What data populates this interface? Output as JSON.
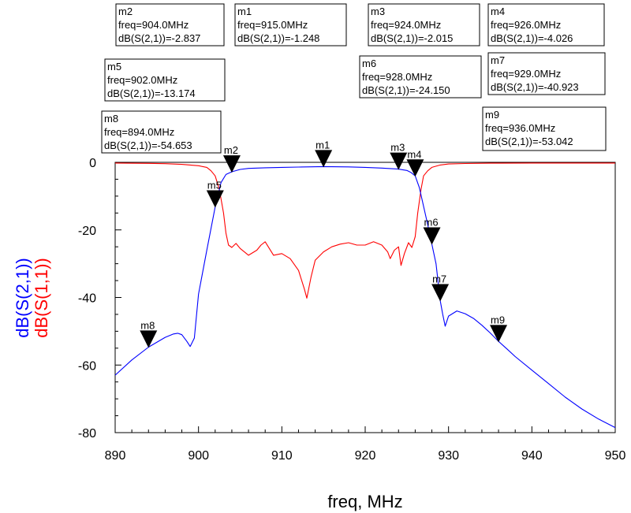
{
  "chart_data": {
    "type": "line",
    "xlabel": "freq, MHz",
    "ylabels": [
      "dB(S(2,1))",
      "dB(S(1,1))"
    ],
    "xlim": [
      890,
      950
    ],
    "ylim": [
      -80,
      0
    ],
    "xticks": [
      890,
      900,
      910,
      920,
      930,
      940,
      950
    ],
    "yticks": [
      0,
      -20,
      -40,
      -60,
      -80
    ],
    "grid": false,
    "series": [
      {
        "name": "dB(S(2,1))",
        "color": "#0000ff",
        "x": [
          890,
          892,
          894,
          896,
          897,
          897.5,
          898,
          898.6,
          899.0,
          899.5,
          900,
          901,
          902,
          902.7,
          903.3,
          904,
          905,
          906,
          908,
          910,
          912,
          915,
          918,
          920,
          922,
          924,
          925,
          925.5,
          926,
          926.5,
          927,
          927.5,
          928,
          928.5,
          929,
          929.3,
          929.6,
          930,
          931,
          932,
          933,
          934,
          935,
          936,
          937,
          938,
          940,
          942,
          944,
          946,
          948,
          950
        ],
        "y": [
          -63,
          -58.5,
          -54.7,
          -51.8,
          -50.8,
          -50.6,
          -51,
          -53,
          -54.5,
          -52,
          -39,
          -26,
          -13.2,
          -6,
          -3.6,
          -2.8,
          -2.1,
          -1.8,
          -1.6,
          -1.5,
          -1.4,
          -1.25,
          -1.35,
          -1.5,
          -1.7,
          -2.0,
          -2.4,
          -3,
          -4.0,
          -7.5,
          -13,
          -18.5,
          -24.2,
          -30,
          -40.9,
          -45,
          -48.5,
          -45.5,
          -44,
          -44.8,
          -46.2,
          -48.2,
          -50.5,
          -53.0,
          -55.2,
          -57.5,
          -61.5,
          -65.5,
          -69.5,
          -73,
          -76,
          -78.5
        ]
      },
      {
        "name": "dB(S(1,1))",
        "color": "#ff0000",
        "x": [
          890,
          894,
          896,
          898,
          899,
          900,
          901,
          901.5,
          902,
          902.5,
          903,
          903.3,
          903.6,
          904,
          904.5,
          905,
          906,
          907,
          907.5,
          908,
          909,
          910,
          911,
          912,
          912.7,
          913,
          913.5,
          914,
          915,
          916,
          917,
          918,
          919,
          920,
          921,
          922,
          922.7,
          923,
          923.5,
          924,
          924.3,
          924.7,
          925.2,
          925.6,
          926,
          926.3,
          926.7,
          927,
          927.5,
          928,
          929,
          930,
          932,
          935,
          940,
          945,
          950
        ],
        "y": [
          -0.2,
          -0.3,
          -0.4,
          -0.6,
          -0.8,
          -1,
          -1.5,
          -2.5,
          -4,
          -8,
          -15,
          -21,
          -24.5,
          -25.2,
          -24,
          -25.5,
          -27.5,
          -26,
          -24.5,
          -23.5,
          -27.5,
          -27,
          -28.5,
          -32,
          -37.5,
          -40.2,
          -34,
          -29,
          -26.5,
          -25,
          -24.2,
          -23.8,
          -24.5,
          -24.5,
          -23.5,
          -24.5,
          -26.5,
          -28.5,
          -26,
          -25,
          -30.5,
          -27,
          -23.8,
          -25.2,
          -22,
          -15,
          -8,
          -4,
          -2.5,
          -1.5,
          -0.8,
          -0.5,
          -0.35,
          -0.25,
          -0.2,
          -0.2,
          -0.2
        ]
      }
    ],
    "markers": [
      {
        "id": "m1",
        "freq_text": "freq=915.0MHz",
        "value_text": "dB(S(2,1))=-1.248",
        "freq": 915.0,
        "value": -1.248
      },
      {
        "id": "m2",
        "freq_text": "freq=904.0MHz",
        "value_text": "dB(S(2,1))=-2.837",
        "freq": 904.0,
        "value": -2.837
      },
      {
        "id": "m3",
        "freq_text": "freq=924.0MHz",
        "value_text": "dB(S(2,1))=-2.015",
        "freq": 924.0,
        "value": -2.015
      },
      {
        "id": "m4",
        "freq_text": "freq=926.0MHz",
        "value_text": "dB(S(2,1))=-4.026",
        "freq": 926.0,
        "value": -4.026
      },
      {
        "id": "m5",
        "freq_text": "freq=902.0MHz",
        "value_text": "dB(S(2,1))=-13.174",
        "freq": 902.0,
        "value": -13.174
      },
      {
        "id": "m6",
        "freq_text": "freq=928.0MHz",
        "value_text": "dB(S(2,1))=-24.150",
        "freq": 928.0,
        "value": -24.15
      },
      {
        "id": "m7",
        "freq_text": "freq=929.0MHz",
        "value_text": "dB(S(2,1))=-40.923",
        "freq": 929.0,
        "value": -40.923
      },
      {
        "id": "m8",
        "freq_text": "freq=894.0MHz",
        "value_text": "dB(S(2,1))=-54.653",
        "freq": 894.0,
        "value": -54.653
      },
      {
        "id": "m9",
        "freq_text": "freq=936.0MHz",
        "value_text": "dB(S(2,1))=-53.042",
        "freq": 936.0,
        "value": -53.042
      }
    ]
  }
}
